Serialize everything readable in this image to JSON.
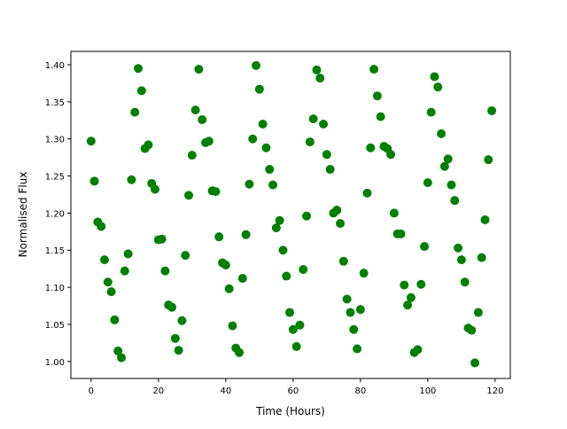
{
  "chart_data": {
    "type": "scatter",
    "title": "",
    "xlabel": "Time (Hours)",
    "ylabel": "Normalised Flux",
    "xlim": [
      -6,
      124.5
    ],
    "ylim": [
      0.977,
      1.418
    ],
    "xticks": [
      0,
      20,
      40,
      60,
      80,
      100,
      120
    ],
    "yticks": [
      "1.00",
      "1.05",
      "1.10",
      "1.15",
      "1.20",
      "1.25",
      "1.30",
      "1.35",
      "1.40"
    ],
    "grid": false,
    "marker_color": "#008000",
    "x": [
      0,
      1,
      2,
      3,
      4,
      5,
      6,
      7,
      8,
      9,
      10,
      11,
      12,
      13,
      14,
      15,
      16,
      17,
      18,
      19,
      20,
      21,
      22,
      23,
      24,
      25,
      26,
      27,
      28,
      29,
      30,
      31,
      32,
      33,
      34,
      35,
      36,
      37,
      38,
      39,
      40,
      41,
      42,
      43,
      44,
      45,
      46,
      47,
      48,
      49,
      50,
      51,
      52,
      53,
      54,
      55,
      56,
      57,
      58,
      59,
      60,
      61,
      62,
      63,
      64,
      65,
      66,
      67,
      68,
      69,
      70,
      71,
      72,
      73,
      74,
      75,
      76,
      77,
      78,
      79,
      80,
      81,
      82,
      83,
      84,
      85,
      86,
      87,
      88,
      89,
      90,
      91,
      92,
      93,
      94,
      95,
      96,
      97,
      98,
      99,
      100,
      101,
      102,
      103,
      104,
      105,
      106,
      107,
      108,
      109,
      110,
      111,
      112,
      113,
      114,
      115,
      116,
      117,
      118,
      119
    ],
    "y": [
      1.297,
      1.243,
      1.188,
      1.182,
      1.137,
      1.107,
      1.094,
      1.056,
      1.014,
      1.005,
      1.122,
      1.145,
      1.245,
      1.336,
      1.395,
      1.365,
      1.287,
      1.292,
      1.24,
      1.232,
      1.164,
      1.165,
      1.122,
      1.076,
      1.073,
      1.031,
      1.015,
      1.055,
      1.143,
      1.224,
      1.278,
      1.339,
      1.394,
      1.326,
      1.295,
      1.297,
      1.23,
      1.229,
      1.168,
      1.133,
      1.13,
      1.098,
      1.048,
      1.018,
      1.012,
      1.112,
      1.171,
      1.239,
      1.3,
      1.399,
      1.367,
      1.32,
      1.288,
      1.259,
      1.238,
      1.18,
      1.19,
      1.15,
      1.115,
      1.066,
      1.043,
      1.02,
      1.049,
      1.124,
      1.196,
      1.296,
      1.327,
      1.393,
      1.382,
      1.32,
      1.279,
      1.259,
      1.2,
      1.204,
      1.186,
      1.135,
      1.084,
      1.066,
      1.043,
      1.017,
      1.07,
      1.119,
      1.227,
      1.288,
      1.394,
      1.358,
      1.33,
      1.29,
      1.287,
      1.279,
      1.2,
      1.172,
      1.172,
      1.103,
      1.076,
      1.086,
      1.012,
      1.016,
      1.104,
      1.155,
      1.241,
      1.336,
      1.384,
      1.37,
      1.307,
      1.263,
      1.273,
      1.238,
      1.217,
      1.153,
      1.137,
      1.107,
      1.045,
      1.042,
      0.998,
      1.066,
      1.14,
      1.191,
      1.272,
      1.338
    ]
  }
}
